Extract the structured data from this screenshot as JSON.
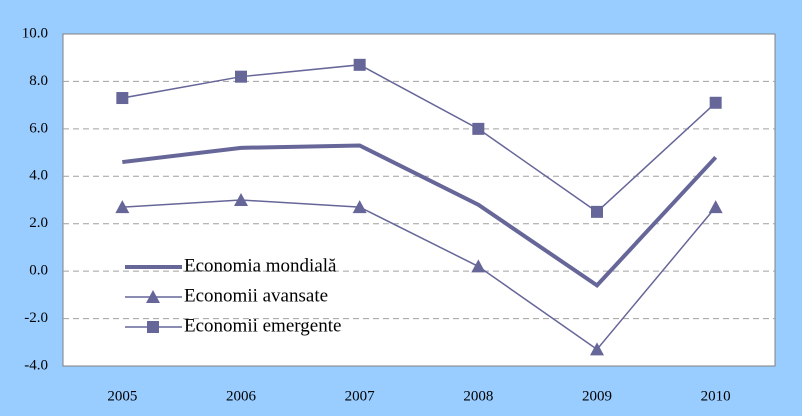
{
  "chart_data": {
    "type": "line",
    "categories": [
      "2005",
      "2006",
      "2007",
      "2008",
      "2009",
      "2010"
    ],
    "series": [
      {
        "name": "Economia mondială",
        "color": "#666699",
        "marker": "none",
        "values": [
          4.6,
          5.2,
          5.3,
          2.8,
          -0.6,
          4.8
        ]
      },
      {
        "name": "Economii avansate",
        "color": "#666699",
        "marker": "triangle",
        "values": [
          2.7,
          3.0,
          2.7,
          0.2,
          -3.3,
          2.7
        ]
      },
      {
        "name": "Economii emergente",
        "color": "#666699",
        "marker": "square",
        "values": [
          7.3,
          8.2,
          8.7,
          6.0,
          2.5,
          7.1
        ]
      }
    ],
    "ylim": [
      -4,
      10
    ],
    "yticks": [
      {
        "value": -4,
        "label": "-4.0"
      },
      {
        "value": -2,
        "label": "-2.0"
      },
      {
        "value": 0,
        "label": "0.0"
      },
      {
        "value": 2,
        "label": "2.0"
      },
      {
        "value": 4,
        "label": "4.0"
      },
      {
        "value": 6,
        "label": "6.0"
      },
      {
        "value": 8,
        "label": "8.0"
      },
      {
        "value": 10,
        "label": "10.0"
      }
    ],
    "grid": true,
    "legend": "lower left"
  }
}
